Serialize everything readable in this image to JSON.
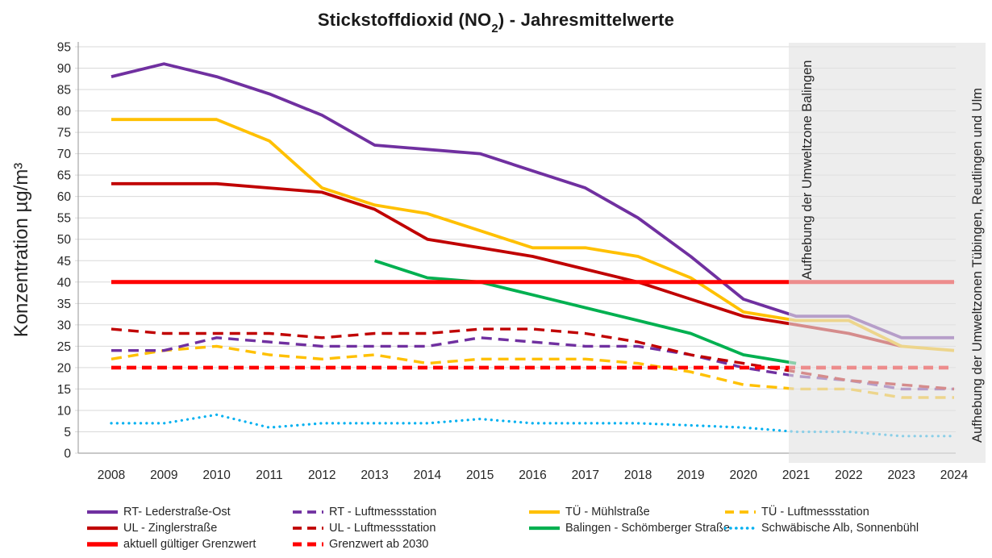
{
  "title": {
    "pre": "Stickstoffdioxid (NO",
    "sub": "2",
    "post": ") - Jahresmittelwerte"
  },
  "y_axis": {
    "title": "Konzentration µg/m³",
    "min": 0,
    "max": 95,
    "tick_step": 5
  },
  "x_axis": {
    "years": [
      2008,
      2009,
      2010,
      2011,
      2012,
      2013,
      2014,
      2015,
      2016,
      2017,
      2018,
      2019,
      2020,
      2021,
      2022,
      2023,
      2024
    ]
  },
  "colors": {
    "purple": "#7030A0",
    "gold": "#FFC000",
    "dark_red": "#C00000",
    "red": "#FF0000",
    "green": "#00B050",
    "light_blue": "#00B0F0",
    "overlay_band": "#E2E2E2",
    "gridline": "#D9D9D9",
    "axis": "#A6A6A6",
    "text": "#262626"
  },
  "chart_data": {
    "type": "line",
    "title": "Stickstoffdioxid (NO2) - Jahresmittelwerte",
    "ylabel": "Konzentration µg/m³",
    "xlabel": "",
    "ylim": [
      0,
      95
    ],
    "ytick_step": 5,
    "grid": true,
    "legend_position": "bottom",
    "x": [
      2008,
      2009,
      2010,
      2011,
      2012,
      2013,
      2014,
      2015,
      2016,
      2017,
      2018,
      2019,
      2020,
      2021,
      2022,
      2023,
      2024
    ],
    "series": [
      {
        "name": "RT- Lederstraße-Ost",
        "color": "#7030A0",
        "style": "solid",
        "width": 3.8,
        "values": [
          88,
          91,
          88,
          84,
          79,
          72,
          71,
          70,
          66,
          62,
          55,
          46,
          36,
          32,
          32,
          27,
          27
        ]
      },
      {
        "name": "RT - Luftmessstation",
        "color": "#7030A0",
        "style": "dashed",
        "width": 3.4,
        "values": [
          24,
          24,
          27,
          26,
          25,
          25,
          25,
          27,
          26,
          25,
          25,
          23,
          20,
          18,
          17,
          15,
          15
        ]
      },
      {
        "name": "TÜ - Mühlstraße",
        "color": "#FFC000",
        "style": "solid",
        "width": 3.8,
        "values": [
          78,
          78,
          78,
          73,
          62,
          58,
          56,
          52,
          48,
          48,
          46,
          41,
          33,
          31,
          31,
          25,
          24
        ]
      },
      {
        "name": "TÜ - Luftmessstation",
        "color": "#FFC000",
        "style": "dashed",
        "width": 3.4,
        "values": [
          22,
          24,
          25,
          23,
          22,
          23,
          21,
          22,
          22,
          22,
          21,
          19,
          16,
          15,
          15,
          13,
          13
        ]
      },
      {
        "name": "UL - Zinglerstraße",
        "color": "#C00000",
        "style": "solid",
        "width": 3.8,
        "values": [
          63,
          63,
          63,
          62,
          61,
          57,
          50,
          48,
          46,
          43,
          40,
          36,
          32,
          30,
          28,
          25,
          null
        ]
      },
      {
        "name": "UL - Luftmessstation",
        "color": "#C00000",
        "style": "dashed",
        "width": 3.4,
        "values": [
          29,
          28,
          28,
          28,
          27,
          28,
          28,
          29,
          29,
          28,
          26,
          23,
          21,
          19,
          17,
          16,
          15
        ]
      },
      {
        "name": "Balingen - Schömberger Straße",
        "color": "#00B050",
        "style": "solid",
        "width": 3.8,
        "values": [
          null,
          null,
          null,
          null,
          null,
          45,
          41,
          40,
          37,
          34,
          31,
          28,
          23,
          21,
          null,
          null,
          null
        ]
      },
      {
        "name": "Schwäbische Alb, Sonnenbühl",
        "color": "#00B0F0",
        "style": "dotted",
        "width": 3.2,
        "values": [
          7,
          7,
          9,
          6,
          7,
          7,
          7,
          8,
          7,
          7,
          7,
          6.5,
          6,
          5,
          5,
          4,
          4
        ]
      },
      {
        "name": "aktuell gültiger Grenzwert",
        "color": "#FF0000",
        "style": "solid",
        "width": 5,
        "values": [
          40,
          40,
          40,
          40,
          40,
          40,
          40,
          40,
          40,
          40,
          40,
          40,
          40,
          40,
          40,
          40,
          40
        ]
      },
      {
        "name": "Grenzwert ab 2030",
        "color": "#FF0000",
        "style": "dashed",
        "width": 4.6,
        "values": [
          20,
          20,
          20,
          20,
          20,
          20,
          20,
          20,
          20,
          20,
          20,
          20,
          20,
          20,
          20,
          20,
          20
        ]
      }
    ],
    "shaded_region": {
      "from_year": 2021,
      "to_year": 2024,
      "labels": [
        "Aufhebung der Umweltzone Balingen",
        "Aufhebung der Umweltzonen Tübingen, Reutlingen und Ulm"
      ]
    }
  },
  "legend": {
    "columns": [
      [
        0,
        4,
        8
      ],
      [
        1,
        5,
        9
      ],
      [
        2,
        6
      ],
      [
        3,
        7
      ]
    ]
  }
}
